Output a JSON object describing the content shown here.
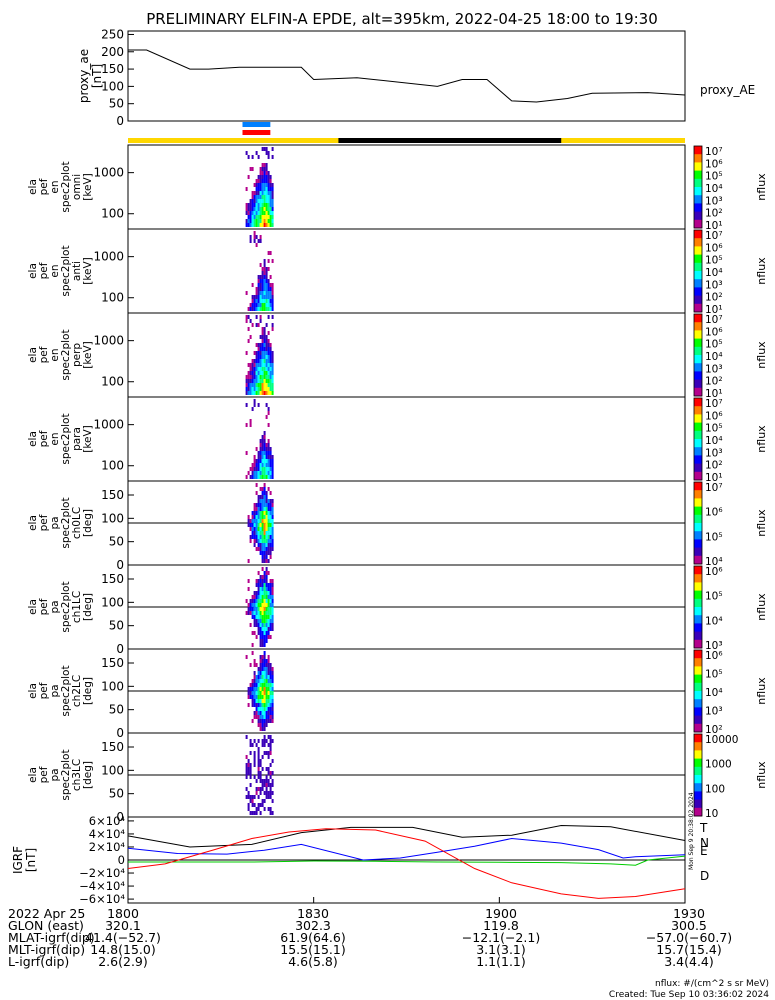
{
  "chart_data": {
    "type": "spectrogram-stack",
    "title": "PRELIMINARY ELFIN-A EPDE, alt=395km, 2022-04-25 18:00 to 19:30",
    "x_range_minutes": [
      0,
      90
    ],
    "time_ticks": [
      "1800",
      "1830",
      "1900",
      "1930"
    ],
    "panels": [
      {
        "id": "proxy_ae",
        "ylabel": [
          "proxy_ae",
          "[nT]"
        ],
        "legend": "proxy_AE",
        "ylim": [
          0,
          260
        ],
        "yticks": [
          "250",
          "200",
          "150",
          "100",
          "50",
          "0"
        ],
        "series": {
          "x": [
            0,
            3,
            10,
            13,
            18,
            28,
            30,
            37,
            50,
            54,
            58,
            62,
            66,
            71,
            75,
            84,
            90
          ],
          "y": [
            205,
            205,
            150,
            150,
            155,
            155,
            120,
            125,
            100,
            120,
            120,
            58,
            55,
            65,
            80,
            82,
            75
          ]
        }
      },
      {
        "id": "omni",
        "ylabel": [
          "ela",
          "pef",
          "en",
          "spec2plot",
          "omni",
          "[keV]"
        ],
        "yticks": [
          "1000",
          "100"
        ],
        "cbar": {
          "label": "nflux",
          "ticks": [
            "10⁷",
            "10⁶",
            "10⁵",
            "10⁴",
            "10³",
            "10²",
            "10¹"
          ]
        }
      },
      {
        "id": "anti",
        "ylabel": [
          "ela",
          "pef",
          "en",
          "spec2plot",
          "anti",
          "[keV]"
        ],
        "yticks": [
          "1000",
          "100"
        ],
        "cbar": {
          "label": "nflux",
          "ticks": [
            "10⁷",
            "10⁶",
            "10⁵",
            "10⁴",
            "10³",
            "10²",
            "10¹"
          ]
        }
      },
      {
        "id": "perp",
        "ylabel": [
          "ela",
          "pef",
          "en",
          "spec2plot",
          "perp",
          "[keV]"
        ],
        "yticks": [
          "1000",
          "100"
        ],
        "cbar": {
          "label": "nflux",
          "ticks": [
            "10⁷",
            "10⁶",
            "10⁵",
            "10⁴",
            "10³",
            "10²",
            "10¹"
          ]
        }
      },
      {
        "id": "para",
        "ylabel": [
          "ela",
          "pef",
          "en",
          "spec2plot",
          "para",
          "[keV]"
        ],
        "yticks": [
          "1000",
          "100"
        ],
        "cbar": {
          "label": "nflux",
          "ticks": [
            "10⁷",
            "10⁶",
            "10⁵",
            "10⁴",
            "10³",
            "10²",
            "10¹"
          ]
        }
      },
      {
        "id": "ch0LC",
        "ylabel": [
          "ela",
          "pef",
          "pa",
          "spec2plot",
          "ch0LC",
          "[deg]"
        ],
        "yticks": [
          "150",
          "100",
          "50",
          "0"
        ],
        "cbar": {
          "label": "nflux",
          "ticks": [
            "10⁷",
            "10⁶",
            "10⁵",
            "10⁴"
          ]
        }
      },
      {
        "id": "ch1LC",
        "ylabel": [
          "ela",
          "pef",
          "pa",
          "spec2plot",
          "ch1LC",
          "[deg]"
        ],
        "yticks": [
          "150",
          "100",
          "50",
          "0"
        ],
        "cbar": {
          "label": "nflux",
          "ticks": [
            "10⁶",
            "10⁵",
            "10⁴",
            "10³"
          ]
        }
      },
      {
        "id": "ch2LC",
        "ylabel": [
          "ela",
          "pef",
          "pa",
          "spec2plot",
          "ch2LC",
          "[deg]"
        ],
        "yticks": [
          "150",
          "100",
          "50",
          "0"
        ],
        "cbar": {
          "label": "nflux",
          "ticks": [
            "10⁶",
            "10⁵",
            "10⁴",
            "10³",
            "10²"
          ]
        }
      },
      {
        "id": "ch3LC",
        "ylabel": [
          "ela",
          "pef",
          "pa",
          "spec2plot",
          "ch3LC",
          "[deg]"
        ],
        "yticks": [
          "150",
          "100",
          "50",
          "0"
        ],
        "cbar": {
          "label": "nflux",
          "ticks": [
            "10000",
            "1000",
            "100",
            "10"
          ]
        }
      },
      {
        "id": "igrf",
        "ylabel": [
          "IGRF",
          "[nT]"
        ],
        "yticks": [
          "6×10⁴",
          "4×10⁴",
          "2×10⁴",
          "0",
          "−2×10⁴",
          "−4×10⁴",
          "−6×10⁴"
        ],
        "legend": [
          "T",
          "N",
          "E",
          "D"
        ],
        "series": [
          {
            "name": "T",
            "color": "#000000",
            "x": [
              0,
              10,
              20,
              28,
              36,
              46,
              54,
              62,
              70,
              78,
              90
            ],
            "y": [
              3.7,
              2.0,
              2.4,
              4.2,
              5.0,
              5.0,
              3.5,
              3.8,
              5.3,
              5.1,
              3.0
            ]
          },
          {
            "name": "N",
            "color": "#0000ff",
            "x": [
              0,
              8,
              16,
              22,
              28,
              38,
              44,
              50,
              56,
              62,
              70,
              76,
              80,
              82,
              90
            ],
            "y": [
              1.8,
              1.0,
              0.9,
              1.5,
              2.4,
              0.0,
              0.3,
              1.2,
              2.1,
              3.3,
              2.6,
              1.6,
              0.3,
              0.5,
              0.8
            ]
          },
          {
            "name": "E",
            "color": "#00cc00",
            "x": [
              0,
              10,
              20,
              30,
              40,
              50,
              60,
              70,
              78,
              82,
              84,
              90
            ],
            "y": [
              -0.3,
              -0.3,
              -0.3,
              -0.15,
              -0.2,
              -0.3,
              -0.35,
              -0.4,
              -0.6,
              -0.8,
              0.0,
              0.6
            ]
          },
          {
            "name": "D",
            "color": "#ff0000",
            "x": [
              0,
              6,
              14,
              20,
              26,
              32,
              40,
              48,
              56,
              62,
              70,
              76,
              82,
              86,
              90
            ],
            "y": [
              -1.3,
              -0.6,
              1.6,
              3.3,
              4.3,
              4.8,
              4.6,
              2.9,
              -1.3,
              -3.5,
              -5.2,
              -5.9,
              -5.6,
              -5.0,
              -4.4
            ]
          }
        ]
      }
    ],
    "colorbar_colors": [
      "#b4008c",
      "#3a00b8",
      "#0000ff",
      "#0080ff",
      "#00ffff",
      "#00ff80",
      "#00ff00",
      "#ffff00",
      "#ff8000",
      "#ff0000"
    ],
    "status_bar": {
      "colors": {
        "sci": "#ffd700",
        "shadow": "#000000"
      },
      "shadow_range_minutes": [
        34,
        70
      ]
    },
    "markers": {
      "blue": "#0080ff",
      "red": "#ff0000",
      "range_minutes": [
        18.5,
        23
      ]
    },
    "burst_range_minutes": [
      19,
      23.5
    ],
    "orbit_table": {
      "date": "2022 Apr 25",
      "rows": [
        {
          "label": "GLON (east)",
          "values": [
            "320.1",
            "302.3",
            "119.8",
            "300.5"
          ]
        },
        {
          "label": "MLAT-igrf(dip)",
          "values": [
            "41.4(−52.7)",
            "61.9(64.6)",
            "−12.1(−2.1)",
            "−57.0(−60.7)"
          ]
        },
        {
          "label": "MLT-igrf(dip)",
          "values": [
            "14.8(15.0)",
            "15.5(15.1)",
            "3.1(3.1)",
            "15.7(15.4)"
          ]
        },
        {
          "label": "L-igrf(dip)",
          "values": [
            "2.6(2.9)",
            "4.6(5.8)",
            "1.1(1.1)",
            "3.4(4.4)"
          ]
        }
      ]
    },
    "footer_notes": [
      "nflux: #/(cm^2 s sr MeV)",
      "Created: Tue Sep 10 03:36:02 2024"
    ],
    "side_stamp": "Mon Sep 9 20:38:02 2024"
  }
}
